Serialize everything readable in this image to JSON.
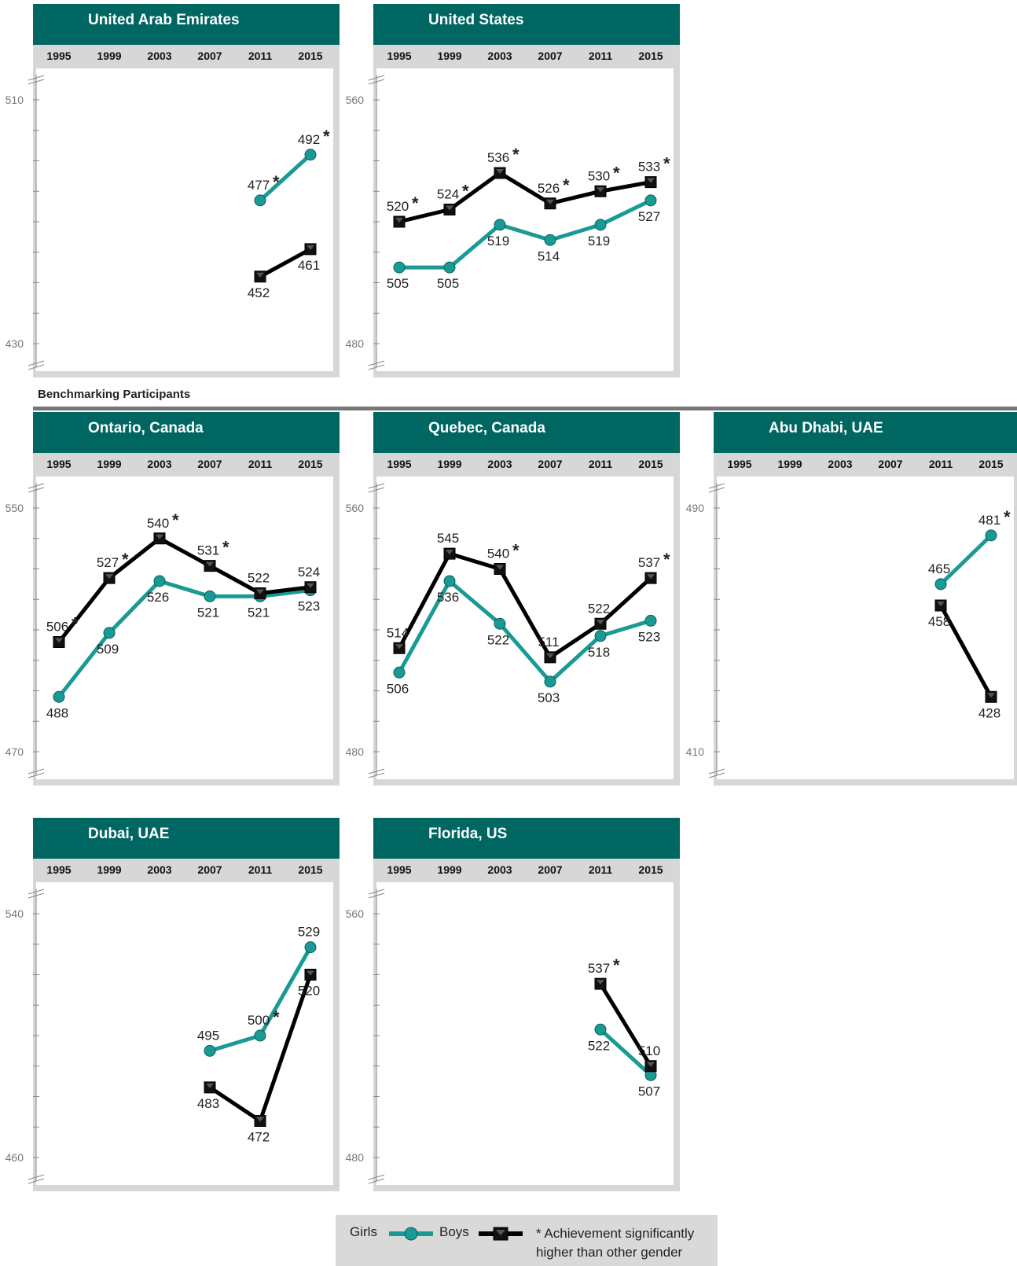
{
  "section_title": "Benchmarking Participants",
  "years": [
    "1995",
    "1999",
    "2003",
    "2007",
    "2011",
    "2015"
  ],
  "legend": {
    "girls_label": "Girls",
    "boys_label": "Boys",
    "note": "* Achievement significantly higher than other gender",
    "girls_color": "#1a9a94",
    "boys_color": "#000000"
  },
  "chart_data": [
    {
      "type": "line",
      "title": "United Arab Emirates",
      "x": [
        "1995",
        "1999",
        "2003",
        "2007",
        "2011",
        "2015"
      ],
      "ylim": [
        430,
        510
      ],
      "yticks": [
        "510",
        "430"
      ],
      "series": [
        {
          "name": "Girls",
          "values": [
            null,
            null,
            null,
            null,
            477,
            492
          ],
          "sig": [
            false,
            false,
            false,
            false,
            true,
            true
          ]
        },
        {
          "name": "Boys",
          "values": [
            null,
            null,
            null,
            null,
            452,
            461
          ],
          "sig": [
            false,
            false,
            false,
            false,
            false,
            false
          ]
        }
      ]
    },
    {
      "type": "line",
      "title": "United States",
      "x": [
        "1995",
        "1999",
        "2003",
        "2007",
        "2011",
        "2015"
      ],
      "ylim": [
        480,
        560
      ],
      "yticks": [
        "560",
        "480"
      ],
      "series": [
        {
          "name": "Girls",
          "values": [
            505,
            505,
            519,
            514,
            519,
            527
          ],
          "sig": [
            false,
            false,
            false,
            false,
            false,
            false
          ]
        },
        {
          "name": "Boys",
          "values": [
            520,
            524,
            536,
            526,
            530,
            533
          ],
          "sig": [
            true,
            true,
            true,
            true,
            true,
            true
          ]
        }
      ]
    },
    {
      "type": "line",
      "title": "Ontario, Canada",
      "x": [
        "1995",
        "1999",
        "2003",
        "2007",
        "2011",
        "2015"
      ],
      "ylim": [
        470,
        550
      ],
      "yticks": [
        "550",
        "470"
      ],
      "series": [
        {
          "name": "Girls",
          "values": [
            488,
            509,
            526,
            521,
            521,
            523
          ],
          "sig": [
            false,
            false,
            false,
            false,
            false,
            false
          ]
        },
        {
          "name": "Boys",
          "values": [
            506,
            527,
            540,
            531,
            522,
            524
          ],
          "sig": [
            true,
            true,
            true,
            true,
            false,
            false
          ]
        }
      ]
    },
    {
      "type": "line",
      "title": "Quebec, Canada",
      "x": [
        "1995",
        "1999",
        "2003",
        "2007",
        "2011",
        "2015"
      ],
      "ylim": [
        480,
        560
      ],
      "yticks": [
        "560",
        "480"
      ],
      "series": [
        {
          "name": "Girls",
          "values": [
            506,
            536,
            522,
            503,
            518,
            523
          ],
          "sig": [
            false,
            false,
            false,
            false,
            false,
            false
          ]
        },
        {
          "name": "Boys",
          "values": [
            514,
            545,
            540,
            511,
            522,
            537
          ],
          "sig": [
            false,
            false,
            true,
            false,
            false,
            true
          ]
        }
      ]
    },
    {
      "type": "line",
      "title": "Abu Dhabi, UAE",
      "x": [
        "1995",
        "1999",
        "2003",
        "2007",
        "2011",
        "2015"
      ],
      "ylim": [
        410,
        490
      ],
      "yticks": [
        "490",
        "410"
      ],
      "series": [
        {
          "name": "Girls",
          "values": [
            null,
            null,
            null,
            null,
            465,
            481
          ],
          "sig": [
            false,
            false,
            false,
            false,
            false,
            true
          ]
        },
        {
          "name": "Boys",
          "values": [
            null,
            null,
            null,
            null,
            458,
            428
          ],
          "sig": [
            false,
            false,
            false,
            false,
            false,
            false
          ]
        }
      ]
    },
    {
      "type": "line",
      "title": "Dubai, UAE",
      "x": [
        "1995",
        "1999",
        "2003",
        "2007",
        "2011",
        "2015"
      ],
      "ylim": [
        460,
        540
      ],
      "yticks": [
        "540",
        "460"
      ],
      "series": [
        {
          "name": "Girls",
          "values": [
            null,
            null,
            null,
            495,
            500,
            529
          ],
          "sig": [
            false,
            false,
            false,
            false,
            true,
            false
          ]
        },
        {
          "name": "Boys",
          "values": [
            null,
            null,
            null,
            483,
            472,
            520
          ],
          "sig": [
            false,
            false,
            false,
            false,
            false,
            false
          ]
        }
      ]
    },
    {
      "type": "line",
      "title": "Florida, US",
      "x": [
        "1995",
        "1999",
        "2003",
        "2007",
        "2011",
        "2015"
      ],
      "ylim": [
        480,
        560
      ],
      "yticks": [
        "560",
        "480"
      ],
      "series": [
        {
          "name": "Girls",
          "values": [
            null,
            null,
            null,
            null,
            522,
            507
          ],
          "sig": [
            false,
            false,
            false,
            false,
            false,
            false
          ]
        },
        {
          "name": "Boys",
          "values": [
            null,
            null,
            null,
            null,
            537,
            510
          ],
          "sig": [
            false,
            false,
            false,
            false,
            true,
            false
          ]
        }
      ]
    }
  ]
}
